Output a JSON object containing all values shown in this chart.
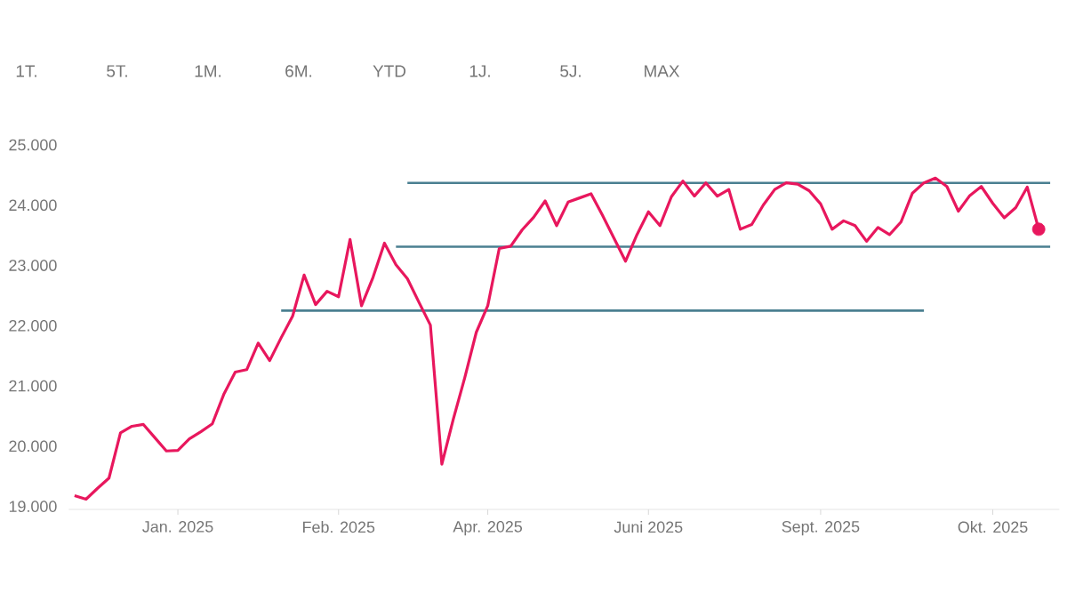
{
  "chart_data": {
    "type": "line",
    "annotations": [
      "1T.",
      "5T.",
      "1M.",
      "6M.",
      "YTD",
      "1J.",
      "5J.",
      "MAX"
    ],
    "categories": [
      null,
      null,
      null,
      null,
      null,
      null,
      null,
      null,
      null,
      "Jan. 2025",
      null,
      null,
      null,
      null,
      null,
      null,
      null,
      null,
      null,
      null,
      null,
      null,
      null,
      "Feb. 2025",
      null,
      null,
      null,
      null,
      null,
      null,
      null,
      null,
      null,
      null,
      null,
      null,
      "Apr. 2025",
      null,
      null,
      null,
      null,
      null,
      null,
      null,
      null,
      null,
      null,
      null,
      null,
      null,
      "Juni 2025",
      null,
      null,
      null,
      null,
      null,
      null,
      null,
      null,
      null,
      null,
      null,
      null,
      null,
      null,
      "Sept. 2025",
      null,
      null,
      null,
      null,
      null,
      null,
      null,
      null,
      null,
      null,
      null,
      null,
      null,
      null,
      "Okt. 2025",
      null,
      null,
      null,
      null,
      null
    ],
    "ylim": [
      18950,
      25000
    ],
    "yticks": [
      {
        "value": 19000,
        "label": "19.000"
      },
      {
        "value": 20000,
        "label": "20.000"
      },
      {
        "value": 21000,
        "label": "21.000"
      },
      {
        "value": 22000,
        "label": "22.000"
      },
      {
        "value": 23000,
        "label": "23.000"
      },
      {
        "value": 24000,
        "label": "24.000"
      },
      {
        "value": 25000,
        "label": "25.000"
      }
    ],
    "series": [
      {
        "type": "line",
        "color": "#4a7f91",
        "values": [
          null,
          null,
          null,
          null,
          null,
          null,
          null,
          null,
          null,
          null,
          null,
          null,
          null,
          null,
          null,
          null,
          null,
          null,
          null,
          null,
          null,
          null,
          null,
          null,
          null,
          null,
          null,
          null,
          null,
          24370,
          null,
          null,
          null,
          null,
          null,
          null,
          null,
          null,
          null,
          null,
          null,
          null,
          null,
          null,
          null,
          null,
          null,
          null,
          null,
          null,
          null,
          null,
          null,
          null,
          null,
          null,
          null,
          null,
          null,
          null,
          null,
          null,
          null,
          null,
          null,
          null,
          null,
          null,
          null,
          null,
          null,
          null,
          null,
          null,
          null,
          null,
          null,
          null,
          null,
          null,
          null,
          null,
          null,
          null,
          null,
          24370
        ]
      },
      {
        "type": "line",
        "color": "#4a7f91",
        "values": [
          null,
          null,
          null,
          null,
          null,
          null,
          null,
          null,
          null,
          null,
          null,
          null,
          null,
          null,
          null,
          null,
          null,
          null,
          null,
          null,
          null,
          null,
          null,
          null,
          null,
          null,
          null,
          null,
          23310,
          null,
          null,
          null,
          null,
          null,
          null,
          null,
          null,
          null,
          null,
          null,
          null,
          null,
          null,
          null,
          null,
          null,
          null,
          null,
          null,
          null,
          null,
          null,
          null,
          null,
          null,
          null,
          null,
          null,
          null,
          null,
          null,
          null,
          null,
          null,
          null,
          null,
          null,
          null,
          null,
          null,
          null,
          null,
          null,
          null,
          null,
          null,
          null,
          null,
          null,
          null,
          null,
          null,
          null,
          null,
          null,
          23310
        ]
      },
      {
        "type": "line",
        "color": "#4a7f91",
        "values": [
          null,
          null,
          null,
          null,
          null,
          null,
          null,
          null,
          null,
          null,
          null,
          null,
          null,
          null,
          null,
          null,
          null,
          null,
          22250,
          null,
          null,
          null,
          null,
          null,
          null,
          null,
          null,
          null,
          null,
          null,
          null,
          null,
          null,
          null,
          null,
          null,
          null,
          null,
          null,
          null,
          null,
          null,
          null,
          null,
          null,
          null,
          null,
          null,
          null,
          null,
          null,
          null,
          null,
          null,
          null,
          null,
          null,
          null,
          null,
          null,
          null,
          null,
          null,
          null,
          null,
          null,
          null,
          null,
          null,
          null,
          null,
          null,
          null,
          null,
          22250,
          null,
          null,
          null,
          null,
          null,
          null,
          null,
          null,
          null,
          null,
          null
        ]
      },
      {
        "color": "#e8175d",
        "values": [
          19180,
          19120,
          19300,
          19470,
          20220,
          20330,
          20360,
          20140,
          19920,
          19930,
          20120,
          20240,
          20370,
          20860,
          21230,
          21270,
          21710,
          21420,
          21800,
          22160,
          22840,
          22350,
          22570,
          22480,
          23430,
          22330,
          22800,
          23370,
          23010,
          22780,
          22390,
          22010,
          19700,
          20450,
          21140,
          21890,
          22330,
          23280,
          23320,
          23590,
          23800,
          24070,
          23660,
          24050,
          24120,
          24190,
          23830,
          23450,
          23070,
          23510,
          23890,
          23660,
          24140,
          24400,
          24150,
          24370,
          24150,
          24260,
          23600,
          23680,
          24000,
          24260,
          24370,
          24350,
          24240,
          24020,
          23600,
          23740,
          23660,
          23400,
          23630,
          23510,
          23720,
          24200,
          24370,
          24450,
          24310,
          23900,
          24160,
          24310,
          24030,
          23790,
          23960,
          24300,
          23600,
          null
        ]
      },
      {
        "type": "scatter",
        "color": "#e8175d",
        "marker": "circle",
        "values": [
          null,
          null,
          null,
          null,
          null,
          null,
          null,
          null,
          null,
          null,
          null,
          null,
          null,
          null,
          null,
          null,
          null,
          null,
          null,
          null,
          null,
          null,
          null,
          null,
          null,
          null,
          null,
          null,
          null,
          null,
          null,
          null,
          null,
          null,
          null,
          null,
          null,
          null,
          null,
          null,
          null,
          null,
          null,
          null,
          null,
          null,
          null,
          null,
          null,
          null,
          null,
          null,
          null,
          null,
          null,
          null,
          null,
          null,
          null,
          null,
          null,
          null,
          null,
          null,
          null,
          null,
          null,
          null,
          null,
          null,
          null,
          null,
          null,
          null,
          null,
          null,
          null,
          null,
          null,
          null,
          null,
          null,
          null,
          null,
          23600,
          null
        ]
      }
    ]
  }
}
